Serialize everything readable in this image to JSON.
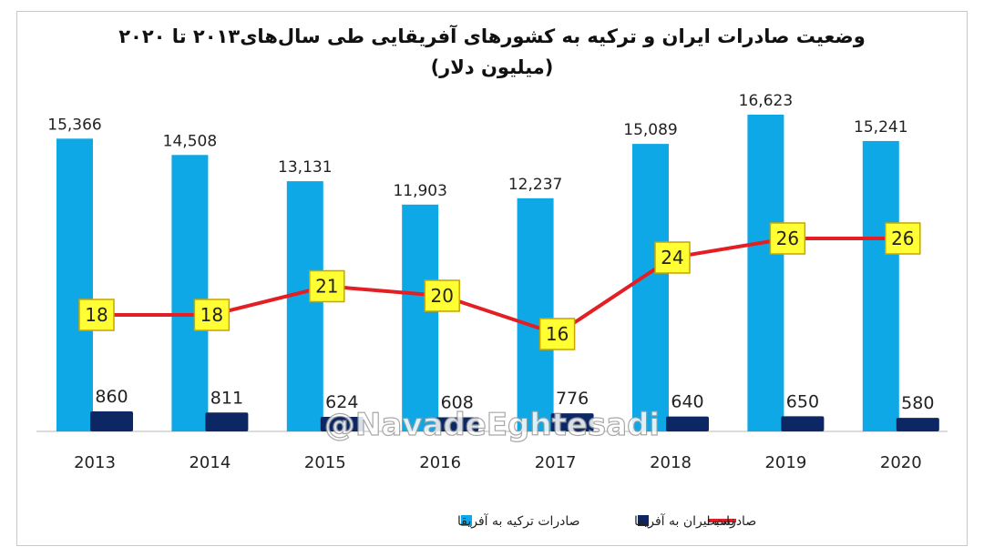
{
  "chart_data": {
    "type": "bar",
    "title": "وضعیت صادرات ایران و ترکیه به کشورهای آفریقایی طی سال‌های۲۰۱۳ تا ۲۰۲۰",
    "subtitle": "(میلیون دلار)",
    "categories": [
      "2013",
      "2014",
      "2015",
      "2016",
      "2017",
      "2018",
      "2019",
      "2020"
    ],
    "series": [
      {
        "name": "صادرات ترکیه به آفریقا",
        "type": "bar",
        "color": "#0fa8e6",
        "values": [
          15366,
          14508,
          13131,
          11903,
          12237,
          15089,
          16623,
          15241
        ],
        "labels": [
          "15,366",
          "14,508",
          "13,131",
          "11,903",
          "12,237",
          "15,089",
          "16,623",
          "15,241"
        ]
      },
      {
        "name": "صادرات ایران به آفریقا",
        "type": "bar",
        "color": "#0c2763",
        "values": [
          860,
          811,
          624,
          608,
          776,
          640,
          650,
          580
        ],
        "labels": [
          "860",
          "811",
          "624",
          "608",
          "776",
          "640",
          "650",
          "580"
        ]
      },
      {
        "name": "نسبت",
        "type": "line",
        "color": "#e31e24",
        "values": [
          18,
          18,
          21,
          20,
          16,
          24,
          26,
          26
        ]
      }
    ],
    "legend": "bottom",
    "grid": false,
    "watermark": "@NavadeEghtesadi"
  }
}
